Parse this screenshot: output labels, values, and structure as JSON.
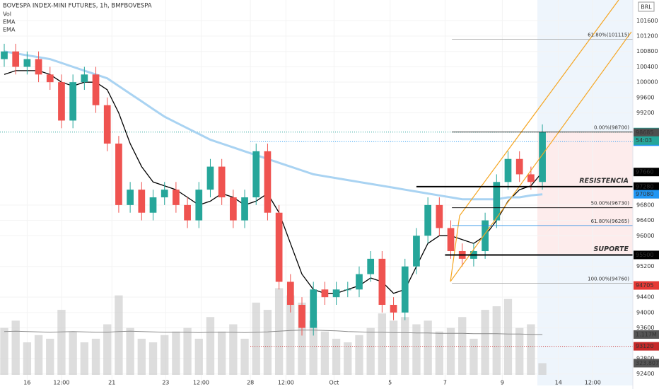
{
  "header": {
    "title": "BOVESPA INDEX-MINI FUTURES, 1h, BMFBOVESPA",
    "indicators": [
      "Vol",
      "EMA",
      "EMA"
    ]
  },
  "chart_data": {
    "type": "candlestick",
    "currency": "BRL",
    "open": [
      100600,
      100800,
      100400,
      100600,
      100200,
      100000,
      99000,
      100000,
      100200,
      99400,
      98400,
      96800,
      97200,
      96600,
      97000,
      97200,
      96800,
      96400,
      97200,
      97800,
      97000,
      96400,
      97000,
      98200,
      96600,
      94800,
      94200,
      93600,
      94600,
      94400,
      94600,
      94600,
      95000,
      95400,
      94200,
      94000,
      95200,
      96000,
      96800,
      96200,
      95600,
      95400,
      95600,
      96400,
      97400,
      98000,
      97600,
      97400
    ],
    "high": [
      101000,
      101000,
      100800,
      100800,
      100400,
      100200,
      100200,
      100400,
      100400,
      99600,
      98600,
      97400,
      97400,
      97200,
      97400,
      97400,
      97000,
      97400,
      98000,
      98000,
      97200,
      97200,
      98400,
      98400,
      96800,
      95000,
      94400,
      94800,
      94800,
      94800,
      94800,
      95200,
      95600,
      95600,
      94400,
      95400,
      96200,
      97000,
      97000,
      96400,
      95800,
      95800,
      96600,
      97600,
      98200,
      98200,
      97800,
      98900
    ],
    "low": [
      100400,
      100200,
      100200,
      100000,
      99800,
      98800,
      98800,
      99800,
      99200,
      98200,
      96600,
      96600,
      96400,
      96400,
      96800,
      96600,
      96200,
      96200,
      97000,
      96800,
      96200,
      96200,
      96800,
      96400,
      94600,
      94000,
      93400,
      93400,
      94200,
      94200,
      94400,
      94400,
      94800,
      94000,
      93800,
      93800,
      95000,
      95800,
      96000,
      95400,
      95200,
      95200,
      95400,
      96200,
      97200,
      97400,
      97200,
      97200
    ],
    "close": [
      100800,
      100400,
      100600,
      100200,
      100000,
      99000,
      100000,
      100200,
      99400,
      98400,
      96800,
      97200,
      96600,
      97000,
      97200,
      96800,
      96400,
      97200,
      97800,
      97000,
      96400,
      97000,
      98200,
      96600,
      94800,
      94200,
      93600,
      94600,
      94400,
      94600,
      94600,
      95000,
      95400,
      94200,
      94000,
      95200,
      96000,
      96800,
      96200,
      95600,
      95400,
      95600,
      96400,
      97400,
      98000,
      97600,
      97400,
      98700
    ],
    "up_color": "#26a69a",
    "down_color": "#ef5350",
    "xlim": [
      -0.37,
      54.9
    ],
    "ylim": [
      92100,
      102140
    ],
    "yticks": [
      92400,
      92800,
      93600,
      94000,
      94400,
      95200,
      96000,
      96400,
      96800,
      99200,
      99600,
      100000,
      100400,
      100800,
      101200,
      101600
    ],
    "xticks": [
      {
        "value": 2,
        "label": "16"
      },
      {
        "value": 5,
        "label": "12:00"
      },
      {
        "value": 9.4,
        "label": "21"
      },
      {
        "value": 14.1,
        "label": "23"
      },
      {
        "value": 17.2,
        "label": "12:00"
      },
      {
        "value": 21.5,
        "label": "28"
      },
      {
        "value": 24.6,
        "label": "12:00"
      },
      {
        "value": 28.8,
        "label": "Oct"
      },
      {
        "value": 33.7,
        "label": "5"
      },
      {
        "value": 38.5,
        "label": "7"
      },
      {
        "value": 43.5,
        "label": "9"
      },
      {
        "value": 48.4,
        "label": "14"
      },
      {
        "value": 51.4,
        "label": "12:00"
      }
    ],
    "ema_lines": [
      {
        "color": "#000000",
        "values": [
          100200,
          100300,
          100300,
          100300,
          100200,
          100000,
          99900,
          100000,
          100000,
          99800,
          99200,
          98400,
          97800,
          97400,
          97300,
          97200,
          97000,
          96800,
          96900,
          97100,
          97000,
          96800,
          96900,
          97100,
          96600,
          95800,
          95000,
          94600,
          94500,
          94500,
          94600,
          94700,
          94900,
          94800,
          94500,
          94600,
          95200,
          95800,
          96000,
          96000,
          95900,
          95800,
          96000,
          96400,
          96900,
          97200,
          97300,
          97660
        ]
      },
      {
        "color": "#a9d3f2",
        "values": [
          100800,
          100750,
          100700,
          100650,
          100600,
          100500,
          100400,
          100300,
          100200,
          100100,
          99900,
          99700,
          99500,
          99300,
          99100,
          98950,
          98800,
          98650,
          98500,
          98400,
          98300,
          98200,
          98100,
          98000,
          97900,
          97800,
          97700,
          97600,
          97550,
          97500,
          97450,
          97400,
          97350,
          97300,
          97250,
          97200,
          97150,
          97100,
          97050,
          97000,
          96950,
          96950,
          96950,
          96950,
          97000,
          97000,
          97050,
          97080
        ]
      }
    ],
    "volume": {
      "color": "#cfcfcf",
      "ylim": [
        0,
        2800000
      ],
      "values": [
        1300000,
        1500000,
        900000,
        1100000,
        1000000,
        1800000,
        1200000,
        900000,
        1000000,
        1400000,
        2200000,
        1300000,
        1000000,
        900000,
        1100000,
        1200000,
        1300000,
        1000000,
        1600000,
        1200000,
        1400000,
        1000000,
        2000000,
        1800000,
        2400000,
        2200000,
        2000000,
        1500000,
        1200000,
        1000000,
        900000,
        1100000,
        1300000,
        1700000,
        1500000,
        1600000,
        1400000,
        1500000,
        1200000,
        1300000,
        1600000,
        1000000,
        1800000,
        1900000,
        2100000,
        1300000,
        1400000,
        323807
      ],
      "ma": {
        "color": "#8a8a8a",
        "values": [
          1200000,
          1210000,
          1200000,
          1190000,
          1180000,
          1190000,
          1200000,
          1190000,
          1180000,
          1180000,
          1200000,
          1210000,
          1200000,
          1190000,
          1180000,
          1180000,
          1180000,
          1170000,
          1180000,
          1180000,
          1180000,
          1170000,
          1180000,
          1190000,
          1210000,
          1230000,
          1240000,
          1240000,
          1230000,
          1220000,
          1200000,
          1190000,
          1180000,
          1180000,
          1170000,
          1170000,
          1160000,
          1160000,
          1150000,
          1150000,
          1150000,
          1140000,
          1140000,
          1140000,
          1130000,
          1130000,
          1120000,
          1117000
        ]
      },
      "labels": [
        {
          "value": 1117000,
          "label": "1.117M",
          "color": "#555555"
        },
        {
          "value": 323807,
          "label": "323.807K",
          "color": "#555555"
        }
      ]
    },
    "levels": [
      {
        "value": 97280,
        "start": 36,
        "label": "RESISTENCIA"
      },
      {
        "value": 95500,
        "start": 38.5,
        "label": "SUPORTE"
      }
    ],
    "fib": [
      {
        "value": 101115,
        "start": 39.1,
        "color": "#9e9e9e",
        "label": "61.80%(101115)"
      },
      {
        "value": 98700,
        "start": 39.1,
        "color": "#000000",
        "label": "0.00%(98700)"
      },
      {
        "value": 96730,
        "start": 39.1,
        "color": "#000000",
        "label": "50.00%(96730)"
      },
      {
        "value": 96265,
        "start": 39.1,
        "color": "#1e88e5",
        "label": "61.80%(96265)"
      },
      {
        "value": 94760,
        "start": 39.1,
        "color": "#9e9e9e",
        "label": "100.00%(94760)"
      }
    ],
    "dotted_lines": [
      {
        "value": 98700,
        "start": -0.37,
        "color": "#26a69a"
      },
      {
        "value": 98450,
        "start": 21.5,
        "color": "#2196f3"
      },
      {
        "value": 93120,
        "start": 21.5,
        "color": "#c62828"
      }
    ],
    "price_labels": [
      {
        "value": 98700,
        "color": "#26a69a"
      },
      {
        "value": 98685,
        "color": "#4f4f4f"
      },
      {
        "value": 98450,
        "color": "#2196f3"
      },
      {
        "value": 97660,
        "color": "#000000"
      },
      {
        "value": 97280,
        "color": "#000000"
      },
      {
        "value": 97080,
        "color": "#2196f3"
      },
      {
        "value": 95500,
        "color": "#000000"
      },
      {
        "value": 94705,
        "color": "#e53935"
      },
      {
        "value": 93120,
        "color": "#c62828"
      }
    ],
    "countdown": "54:03"
  }
}
